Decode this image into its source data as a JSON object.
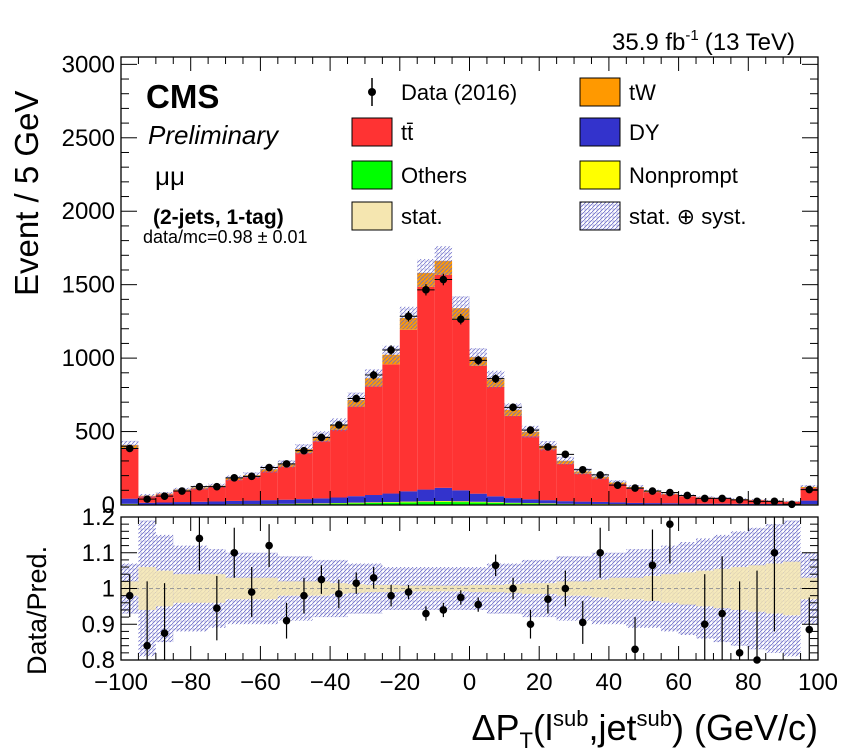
{
  "header": {
    "lumi": "35.9 fb",
    "lumi_sup": "-1",
    "energy": "(13 TeV)"
  },
  "labels": {
    "cms": "CMS",
    "preliminary": "Preliminary",
    "channel": "μμ",
    "selection": "(2-jets, 1-tag)",
    "ratio_text": "data/mc=0.98 ± 0.01"
  },
  "colors": {
    "ttbar": "#ff3333",
    "tw": "#ff9900",
    "dy": "#3333cc",
    "others": "#00ff00",
    "nonprompt": "#ffff00",
    "stat_band": "#f5e6b0",
    "syst_band": "#8a8ad0"
  },
  "legend": [
    {
      "key": "data",
      "label": "Data (2016)",
      "style": "marker"
    },
    {
      "key": "tw",
      "label": "tW",
      "style": "fill"
    },
    {
      "key": "ttbar",
      "label": "tt̄",
      "style": "fill"
    },
    {
      "key": "dy",
      "label": "DY",
      "style": "fill"
    },
    {
      "key": "others",
      "label": "Others",
      "style": "fill"
    },
    {
      "key": "nonprompt",
      "label": "Nonprompt",
      "style": "fill"
    },
    {
      "key": "stat",
      "label": "stat.",
      "style": "stat"
    },
    {
      "key": "syst",
      "label": "stat. ⊕ syst.",
      "style": "syst"
    }
  ],
  "chart_data": {
    "type": "bar",
    "stacked": true,
    "bin_width": 5,
    "x_edges_range": [
      -100,
      100
    ],
    "xlabel": "ΔP_T(l^sub,jet^sub) (GeV/c)",
    "ylabel": "Event / 5 GeV",
    "ylim": [
      0,
      3050
    ],
    "yticks": [
      0,
      500,
      1000,
      1500,
      2000,
      2500,
      3000
    ],
    "xticks": [
      -100,
      -80,
      -60,
      -40,
      -20,
      0,
      20,
      40,
      60,
      80,
      100
    ],
    "x": [
      -97.5,
      -92.5,
      -87.5,
      -82.5,
      -77.5,
      -72.5,
      -67.5,
      -62.5,
      -57.5,
      -52.5,
      -47.5,
      -42.5,
      -37.5,
      -32.5,
      -27.5,
      -22.5,
      -17.5,
      -12.5,
      -7.5,
      -2.5,
      2.5,
      7.5,
      12.5,
      17.5,
      22.5,
      27.5,
      32.5,
      37.5,
      42.5,
      47.5,
      52.5,
      57.5,
      62.5,
      67.5,
      72.5,
      77.5,
      82.5,
      87.5,
      92.5,
      97.5
    ],
    "series": [
      {
        "name": "Others",
        "values": [
          5,
          2,
          2,
          3,
          3,
          3,
          4,
          4,
          5,
          6,
          7,
          8,
          10,
          12,
          14,
          16,
          18,
          20,
          22,
          20,
          18,
          15,
          12,
          10,
          8,
          6,
          5,
          5,
          4,
          3,
          3,
          3,
          2,
          2,
          2,
          2,
          2,
          2,
          2,
          3
        ]
      },
      {
        "name": "Nonprompt",
        "values": [
          3,
          1,
          1,
          1,
          1,
          1,
          2,
          2,
          2,
          2,
          3,
          3,
          3,
          4,
          4,
          4,
          5,
          5,
          5,
          5,
          4,
          4,
          3,
          3,
          3,
          2,
          2,
          2,
          2,
          1,
          1,
          1,
          1,
          1,
          1,
          1,
          1,
          1,
          1,
          2
        ]
      },
      {
        "name": "DY",
        "values": [
          35,
          12,
          14,
          16,
          18,
          20,
          22,
          24,
          26,
          28,
          30,
          34,
          38,
          44,
          50,
          58,
          70,
          80,
          90,
          75,
          55,
          40,
          32,
          26,
          22,
          18,
          16,
          14,
          12,
          10,
          9,
          8,
          7,
          6,
          6,
          5,
          5,
          4,
          4,
          25
        ]
      },
      {
        "name": "tt̄",
        "values": [
          340,
          45,
          56,
          80,
          90,
          100,
          145,
          160,
          195,
          225,
          315,
          390,
          460,
          610,
          740,
          880,
          1100,
          1380,
          1450,
          1160,
          870,
          745,
          560,
          430,
          345,
          255,
          190,
          160,
          125,
          100,
          75,
          60,
          50,
          40,
          35,
          30,
          25,
          20,
          15,
          85
        ]
      },
      {
        "name": "tW",
        "values": [
          25,
          3,
          4,
          5,
          6,
          7,
          10,
          12,
          15,
          18,
          25,
          30,
          35,
          45,
          55,
          65,
          80,
          95,
          95,
          80,
          60,
          50,
          40,
          30,
          25,
          20,
          15,
          12,
          10,
          8,
          6,
          5,
          4,
          3,
          3,
          2,
          2,
          2,
          2,
          8
        ]
      }
    ],
    "data": {
      "name": "Data (2016)",
      "values": [
        385,
        40,
        60,
        95,
        125,
        125,
        185,
        195,
        255,
        280,
        370,
        460,
        545,
        725,
        885,
        1055,
        1285,
        1465,
        1535,
        1265,
        985,
        860,
        665,
        510,
        395,
        345,
        240,
        205,
        135,
        115,
        95,
        85,
        65,
        45,
        45,
        35,
        25,
        25,
        5,
        105
      ]
    },
    "ratio": {
      "ylabel": "Data/Pred.",
      "ylim": [
        0.8,
        1.2
      ],
      "yticks": [
        0.8,
        0.9,
        1.0,
        1.1,
        1.2
      ],
      "ytick_labels": [
        "0.8",
        "0.9",
        "1",
        "1.1",
        "1.2"
      ],
      "values": [
        0.98,
        0.84,
        0.875,
        1.14,
        0.945,
        1.1,
        0.99,
        1.12,
        0.91,
        0.98,
        1.025,
        0.985,
        1.015,
        1.03,
        0.98,
        0.99,
        0.93,
        0.94,
        0.975,
        0.955,
        1.065,
        1.0,
        0.9,
        0.97,
        1.0,
        0.905,
        1.1,
        0.83,
        1.065,
        1.18,
        0.9,
        0.93,
        0.82,
        0.8,
        1.1,
        0.885
      ],
      "values_x": [
        -97.5,
        -92.5,
        -87.5,
        -77.5,
        -72.5,
        -67.5,
        -62.5,
        -57.5,
        -52.5,
        -47.5,
        -42.5,
        -37.5,
        -32.5,
        -27.5,
        -22.5,
        -17.5,
        -12.5,
        -7.5,
        -2.5,
        2.5,
        7.5,
        12.5,
        17.5,
        22.5,
        27.5,
        32.5,
        37.5,
        47.5,
        52.5,
        57.5,
        67.5,
        72.5,
        77.5,
        82.5,
        87.5,
        97.5
      ],
      "errors": [
        0.06,
        0.18,
        0.14,
        0.09,
        0.09,
        0.07,
        0.07,
        0.06,
        0.05,
        0.05,
        0.04,
        0.04,
        0.03,
        0.03,
        0.03,
        0.02,
        0.02,
        0.02,
        0.02,
        0.02,
        0.03,
        0.03,
        0.04,
        0.04,
        0.05,
        0.06,
        0.07,
        0.09,
        0.1,
        0.11,
        0.14,
        0.16,
        0.2,
        0.25,
        0.22,
        0.09
      ],
      "stat_band": [
        0.02,
        0.06,
        0.05,
        0.04,
        0.04,
        0.04,
        0.03,
        0.03,
        0.03,
        0.02,
        0.02,
        0.02,
        0.015,
        0.012,
        0.01,
        0.01,
        0.008,
        0.008,
        0.008,
        0.008,
        0.01,
        0.01,
        0.012,
        0.015,
        0.015,
        0.02,
        0.02,
        0.025,
        0.03,
        0.03,
        0.035,
        0.04,
        0.045,
        0.05,
        0.055,
        0.06,
        0.065,
        0.07,
        0.075,
        0.03
      ],
      "syst_band": [
        0.07,
        0.19,
        0.15,
        0.12,
        0.12,
        0.11,
        0.1,
        0.1,
        0.1,
        0.09,
        0.09,
        0.08,
        0.08,
        0.07,
        0.07,
        0.06,
        0.06,
        0.06,
        0.06,
        0.06,
        0.06,
        0.07,
        0.07,
        0.08,
        0.08,
        0.09,
        0.09,
        0.1,
        0.1,
        0.11,
        0.11,
        0.12,
        0.13,
        0.14,
        0.15,
        0.16,
        0.17,
        0.18,
        0.19,
        0.1
      ]
    }
  }
}
